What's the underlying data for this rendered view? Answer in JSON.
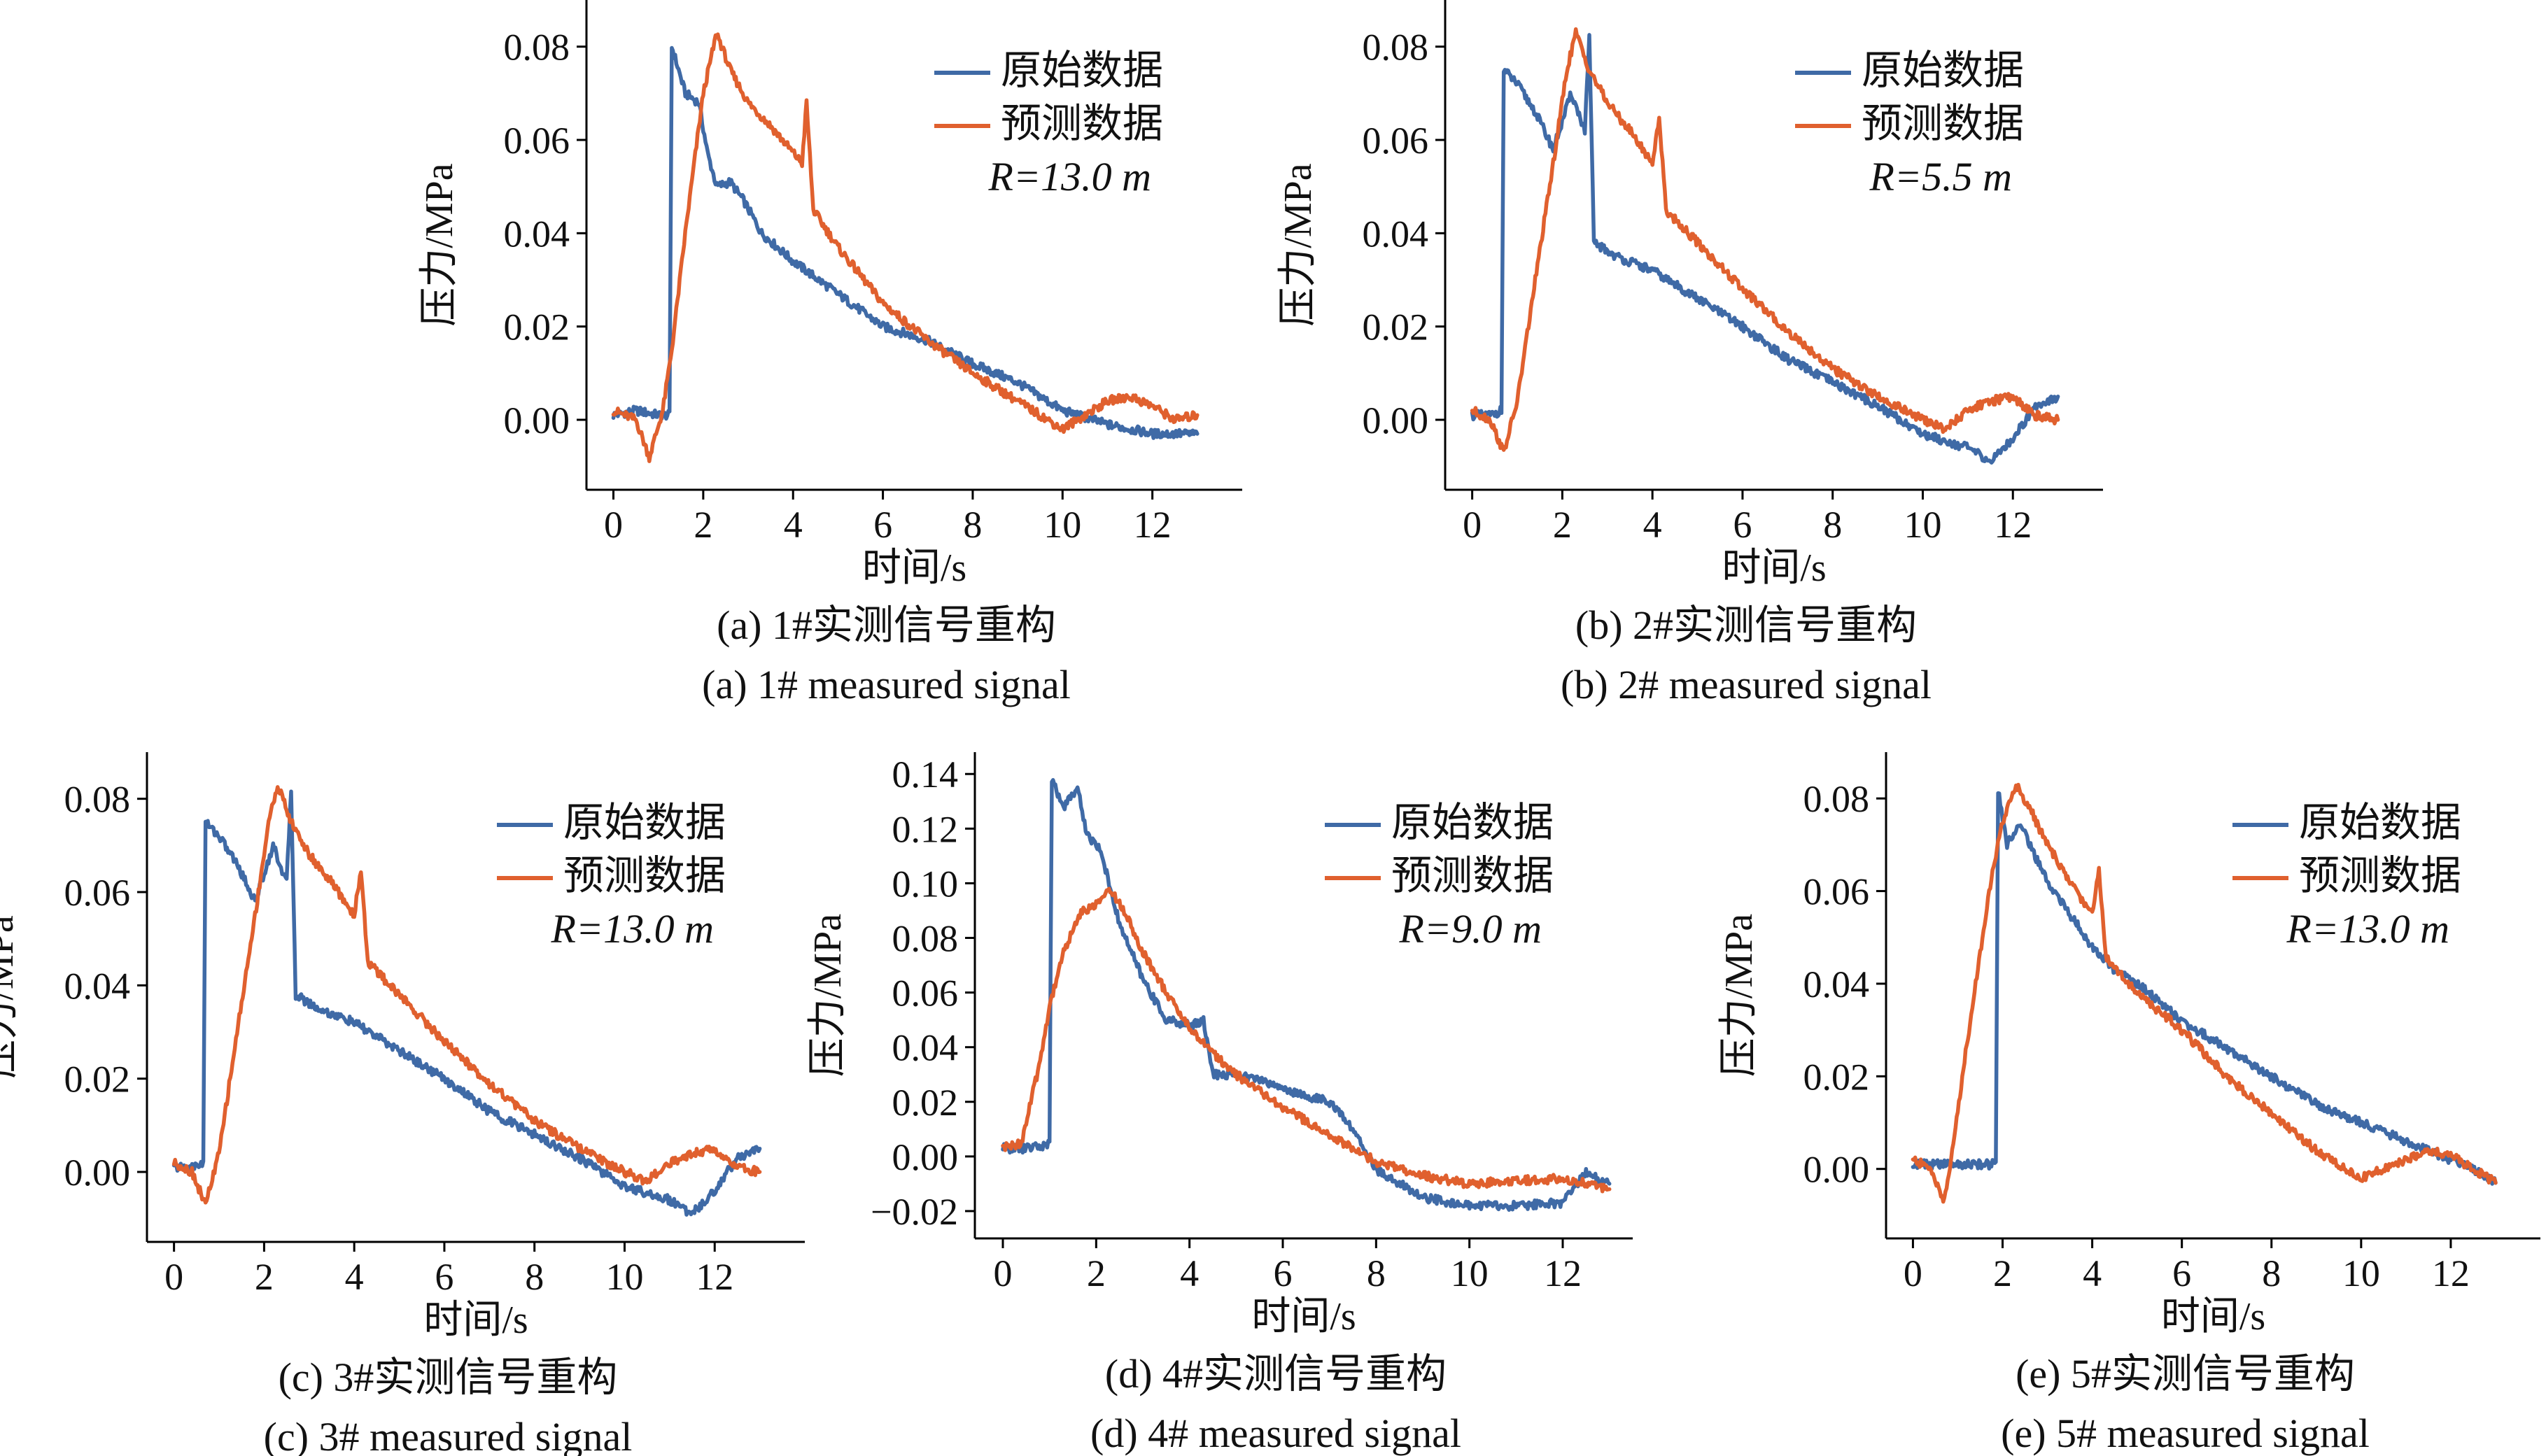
{
  "chart_data": [
    {
      "id": "a",
      "type": "line",
      "caption_cn": "(a) 1#实测信号重构",
      "caption_en": "(a) 1# measured signal",
      "xlabel": "时间/s",
      "ylabel": "压力/MPa",
      "xlim": [
        -0.6,
        14.0
      ],
      "ylim": [
        -0.015,
        0.09
      ],
      "xticks": [
        0,
        2,
        4,
        6,
        8,
        10,
        12
      ],
      "xtick_labels": [
        "0",
        "2",
        "4",
        "6",
        "8",
        "10",
        "12"
      ],
      "yticks": [
        0.0,
        0.02,
        0.04,
        0.06,
        0.08
      ],
      "ytick_labels": [
        "0.00",
        "0.02",
        "0.04",
        "0.06",
        "0.08"
      ],
      "legend_position": "top-right",
      "annotation": "R=13.0 m",
      "series": [
        {
          "name": "原始数据",
          "color": "#3F6AA6",
          "x": [
            0,
            0.5,
            1.0,
            1.25,
            1.3,
            1.6,
            1.9,
            2.1,
            2.3,
            2.6,
            2.9,
            3.3,
            4.0,
            5.0,
            6.0,
            7.0,
            8.0,
            9.0,
            10.0,
            11.0,
            12.0,
            13.0
          ],
          "y": [
            0.001,
            0.002,
            0.001,
            0.001,
            0.08,
            0.07,
            0.068,
            0.057,
            0.05,
            0.051,
            0.047,
            0.04,
            0.034,
            0.027,
            0.02,
            0.017,
            0.012,
            0.008,
            0.002,
            -0.001,
            -0.003,
            -0.003
          ]
        },
        {
          "name": "预测数据",
          "color": "#E0602E",
          "x": [
            0,
            0.5,
            0.8,
            1.1,
            1.3,
            1.6,
            2.0,
            2.3,
            2.6,
            3.0,
            3.5,
            4.2,
            4.3,
            4.45,
            5.0,
            6.0,
            7.0,
            8.0,
            9.0,
            10.0,
            11.0,
            11.5,
            12.0,
            12.5,
            13.0
          ],
          "y": [
            0.002,
            0.0,
            -0.008,
            0.002,
            0.015,
            0.04,
            0.07,
            0.083,
            0.075,
            0.068,
            0.063,
            0.055,
            0.068,
            0.045,
            0.037,
            0.025,
            0.017,
            0.01,
            0.004,
            -0.002,
            0.004,
            0.005,
            0.003,
            0.0,
            0.001
          ]
        }
      ]
    },
    {
      "id": "b",
      "type": "line",
      "caption_cn": "(b) 2#实测信号重构",
      "caption_en": "(b) 2# measured signal",
      "xlabel": "时间/s",
      "ylabel": "压力/MPa",
      "xlim": [
        -0.6,
        14.0
      ],
      "ylim": [
        -0.015,
        0.09
      ],
      "xticks": [
        0,
        2,
        4,
        6,
        8,
        10,
        12
      ],
      "xtick_labels": [
        "0",
        "2",
        "4",
        "6",
        "8",
        "10",
        "12"
      ],
      "yticks": [
        0.0,
        0.02,
        0.04,
        0.06,
        0.08
      ],
      "ytick_labels": [
        "0.00",
        "0.02",
        "0.04",
        "0.06",
        "0.08"
      ],
      "legend_position": "top-right",
      "annotation": "R=5.5 m",
      "series": [
        {
          "name": "原始数据",
          "color": "#3F6AA6",
          "x": [
            0,
            0.4,
            0.65,
            0.7,
            1.0,
            1.4,
            1.8,
            2.2,
            2.5,
            2.6,
            2.7,
            3.2,
            4.0,
            5.0,
            6.0,
            7.0,
            8.0,
            9.0,
            10.0,
            11.0,
            11.5,
            12.0,
            12.5,
            13.0
          ],
          "y": [
            0.001,
            0.001,
            0.002,
            0.075,
            0.072,
            0.066,
            0.058,
            0.07,
            0.062,
            0.082,
            0.038,
            0.035,
            0.032,
            0.026,
            0.02,
            0.013,
            0.008,
            0.003,
            -0.003,
            -0.006,
            -0.009,
            -0.004,
            0.003,
            0.005
          ]
        },
        {
          "name": "预测数据",
          "color": "#E0602E",
          "x": [
            0,
            0.4,
            0.7,
            1.0,
            1.4,
            1.8,
            2.1,
            2.3,
            2.6,
            3.0,
            3.5,
            4.0,
            4.15,
            4.3,
            5.0,
            6.0,
            7.0,
            8.0,
            9.0,
            10.0,
            10.5,
            11.0,
            11.5,
            12.0,
            12.5,
            13.0
          ],
          "y": [
            0.002,
            0.0,
            -0.007,
            0.004,
            0.03,
            0.055,
            0.075,
            0.083,
            0.075,
            0.068,
            0.062,
            0.055,
            0.065,
            0.045,
            0.038,
            0.028,
            0.019,
            0.011,
            0.005,
            0.0,
            -0.002,
            0.002,
            0.004,
            0.005,
            0.001,
            0.0
          ]
        }
      ]
    },
    {
      "id": "c",
      "type": "line",
      "caption_cn": "(c) 3#实测信号重构",
      "caption_en": "(c) 3# measured signal",
      "xlabel": "时间/s",
      "ylabel": "压力/MPa",
      "xlim": [
        -0.6,
        14.0
      ],
      "ylim": [
        -0.015,
        0.09
      ],
      "xticks": [
        0,
        2,
        4,
        6,
        8,
        10,
        12
      ],
      "xtick_labels": [
        "0",
        "2",
        "4",
        "6",
        "8",
        "10",
        "12"
      ],
      "yticks": [
        0.0,
        0.02,
        0.04,
        0.06,
        0.08
      ],
      "ytick_labels": [
        "0.00",
        "0.02",
        "0.04",
        "0.06",
        "0.08"
      ],
      "legend_position": "top-right",
      "annotation": "R=13.0 m",
      "series": [
        {
          "name": "原始数据",
          "color": "#3F6AA6",
          "x": [
            0,
            0.4,
            0.65,
            0.7,
            1.0,
            1.4,
            1.8,
            2.2,
            2.5,
            2.6,
            2.7,
            3.2,
            4.0,
            5.0,
            6.0,
            7.0,
            8.0,
            9.0,
            10.0,
            11.0,
            11.5,
            12.0,
            12.5,
            13.0
          ],
          "y": [
            0.001,
            0.001,
            0.002,
            0.075,
            0.072,
            0.066,
            0.058,
            0.07,
            0.062,
            0.082,
            0.038,
            0.035,
            0.032,
            0.026,
            0.02,
            0.013,
            0.008,
            0.003,
            -0.003,
            -0.006,
            -0.009,
            -0.004,
            0.003,
            0.005
          ]
        },
        {
          "name": "预测数据",
          "color": "#E0602E",
          "x": [
            0,
            0.4,
            0.7,
            1.0,
            1.4,
            1.8,
            2.1,
            2.3,
            2.6,
            3.0,
            3.5,
            4.0,
            4.15,
            4.3,
            5.0,
            6.0,
            7.0,
            8.0,
            9.0,
            10.0,
            10.5,
            11.0,
            11.5,
            12.0,
            12.5,
            13.0
          ],
          "y": [
            0.002,
            0.0,
            -0.007,
            0.004,
            0.03,
            0.055,
            0.075,
            0.083,
            0.075,
            0.068,
            0.062,
            0.055,
            0.065,
            0.045,
            0.038,
            0.028,
            0.019,
            0.011,
            0.005,
            0.0,
            -0.002,
            0.002,
            0.004,
            0.005,
            0.001,
            0.0
          ]
        }
      ]
    },
    {
      "id": "d",
      "type": "line",
      "caption_cn": "(d) 4#实测信号重构",
      "caption_en": "(d) 4# measured signal",
      "xlabel": "时间/s",
      "ylabel": "压力/MPa",
      "xlim": [
        -0.6,
        13.5
      ],
      "ylim": [
        -0.03,
        0.148
      ],
      "xticks": [
        0,
        2,
        4,
        6,
        8,
        10,
        12
      ],
      "xtick_labels": [
        "0",
        "2",
        "4",
        "6",
        "8",
        "10",
        "12"
      ],
      "yticks": [
        -0.02,
        0.0,
        0.02,
        0.04,
        0.06,
        0.08,
        0.1,
        0.12,
        0.14
      ],
      "ytick_labels": [
        "−0.02",
        "0.00",
        "0.02",
        "0.04",
        "0.06",
        "0.08",
        "0.10",
        "0.12",
        "0.14"
      ],
      "legend_position": "top-right",
      "annotation": "R=9.0 m",
      "series": [
        {
          "name": "原始数据",
          "color": "#3F6AA6",
          "x": [
            0,
            0.5,
            0.9,
            1.0,
            1.05,
            1.3,
            1.6,
            1.8,
            2.1,
            2.5,
            3.0,
            3.5,
            4.0,
            4.3,
            4.5,
            5.0,
            5.5,
            6.0,
            6.5,
            7.0,
            7.5,
            8.0,
            9.0,
            10.0,
            11.0,
            12.0,
            12.5,
            13.0
          ],
          "y": [
            0.003,
            0.003,
            0.004,
            0.005,
            0.138,
            0.128,
            0.135,
            0.118,
            0.112,
            0.085,
            0.065,
            0.05,
            0.048,
            0.05,
            0.03,
            0.03,
            0.028,
            0.025,
            0.022,
            0.02,
            0.01,
            -0.005,
            -0.015,
            -0.018,
            -0.018,
            -0.017,
            -0.006,
            -0.01
          ]
        },
        {
          "name": "预测数据",
          "color": "#E0602E",
          "x": [
            0,
            0.4,
            0.6,
            0.8,
            1.0,
            1.3,
            1.7,
            2.0,
            2.3,
            2.6,
            3.0,
            3.5,
            4.0,
            4.5,
            5.0,
            6.0,
            7.0,
            8.0,
            9.0,
            10.0,
            11.0,
            12.0,
            12.5,
            13.0
          ],
          "y": [
            0.003,
            0.005,
            0.02,
            0.035,
            0.055,
            0.075,
            0.09,
            0.092,
            0.098,
            0.09,
            0.075,
            0.06,
            0.047,
            0.038,
            0.03,
            0.018,
            0.008,
            -0.002,
            -0.007,
            -0.01,
            -0.009,
            -0.008,
            -0.01,
            -0.012
          ]
        }
      ]
    },
    {
      "id": "e",
      "type": "line",
      "caption_cn": "(e) 5#实测信号重构",
      "caption_en": "(e) 5# measured signal",
      "xlabel": "时间/s",
      "ylabel": "压力/MPa",
      "xlim": [
        -0.6,
        14.0
      ],
      "ylim": [
        -0.015,
        0.09
      ],
      "xticks": [
        0,
        2,
        4,
        6,
        8,
        10,
        12
      ],
      "xtick_labels": [
        "0",
        "2",
        "4",
        "6",
        "8",
        "10",
        "12"
      ],
      "yticks": [
        0.0,
        0.02,
        0.04,
        0.06,
        0.08
      ],
      "ytick_labels": [
        "0.00",
        "0.02",
        "0.04",
        "0.06",
        "0.08"
      ],
      "legend_position": "top-right",
      "annotation": "R=13.0 m",
      "series": [
        {
          "name": "原始数据",
          "color": "#3F6AA6",
          "x": [
            0,
            0.5,
            1.0,
            1.5,
            1.85,
            1.9,
            2.1,
            2.4,
            2.7,
            3.0,
            3.5,
            4.0,
            4.5,
            5.0,
            6.0,
            7.0,
            8.0,
            9.0,
            10.0,
            11.0,
            12.0,
            12.5,
            13.0
          ],
          "y": [
            0.001,
            0.001,
            0.001,
            0.001,
            0.001,
            0.082,
            0.07,
            0.075,
            0.068,
            0.062,
            0.055,
            0.048,
            0.043,
            0.04,
            0.032,
            0.026,
            0.02,
            0.014,
            0.01,
            0.006,
            0.002,
            0.0,
            -0.003
          ]
        },
        {
          "name": "预测数据",
          "color": "#E0602E",
          "x": [
            0,
            0.4,
            0.7,
            0.9,
            1.1,
            1.4,
            1.7,
            2.0,
            2.3,
            2.6,
            3.0,
            3.5,
            4.0,
            4.15,
            4.3,
            5.0,
            6.0,
            7.0,
            8.0,
            9.0,
            10.0,
            11.0,
            11.5,
            12.0,
            12.5,
            13.0
          ],
          "y": [
            0.002,
            0.0,
            -0.007,
            0.005,
            0.02,
            0.04,
            0.06,
            0.075,
            0.083,
            0.078,
            0.07,
            0.062,
            0.055,
            0.065,
            0.046,
            0.038,
            0.03,
            0.02,
            0.012,
            0.004,
            -0.002,
            0.002,
            0.004,
            0.003,
            0.0,
            -0.003
          ]
        }
      ]
    }
  ]
}
